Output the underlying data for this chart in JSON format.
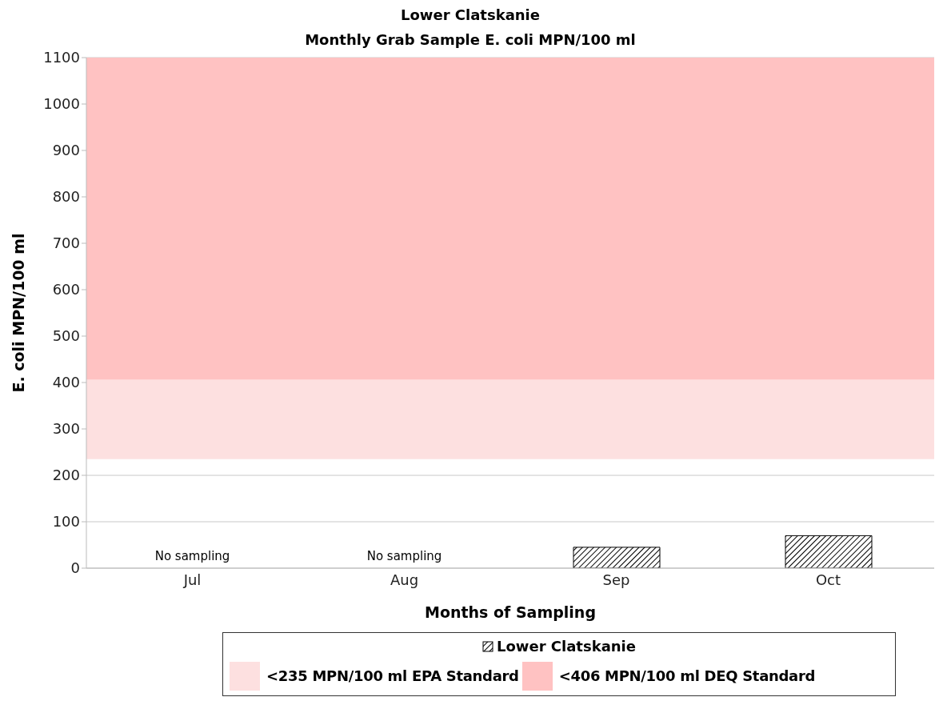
{
  "chart_data": {
    "type": "bar",
    "title": "Lower Clatskanie",
    "subtitle": "Monthly Grab Sample E. coli MPN/100 ml",
    "xlabel": "Months of Sampling",
    "ylabel": "E. coli MPN/100 ml",
    "categories": [
      "Jul",
      "Aug",
      "Sep",
      "Oct"
    ],
    "series": [
      {
        "name": "Lower Clatskanie",
        "color": "#000000",
        "values": [
          null,
          null,
          45,
          70
        ]
      }
    ],
    "ylim": [
      0,
      1100
    ],
    "yticks": [
      0,
      100,
      200,
      300,
      400,
      500,
      600,
      700,
      800,
      900,
      1000,
      1100
    ],
    "grid": "y",
    "legend": "bottom",
    "bands": [
      {
        "axis": "y",
        "from": 235,
        "to": 406,
        "label": "<235 MPN/100 ml EPA Standard",
        "color": "#fde0e0"
      },
      {
        "axis": "y",
        "from": 406,
        "to": 1100,
        "label": "<406 MPN/100 ml DEQ Standard",
        "color": "#ffc2c2"
      }
    ],
    "annotations": [
      "No sampling",
      "No sampling"
    ]
  }
}
